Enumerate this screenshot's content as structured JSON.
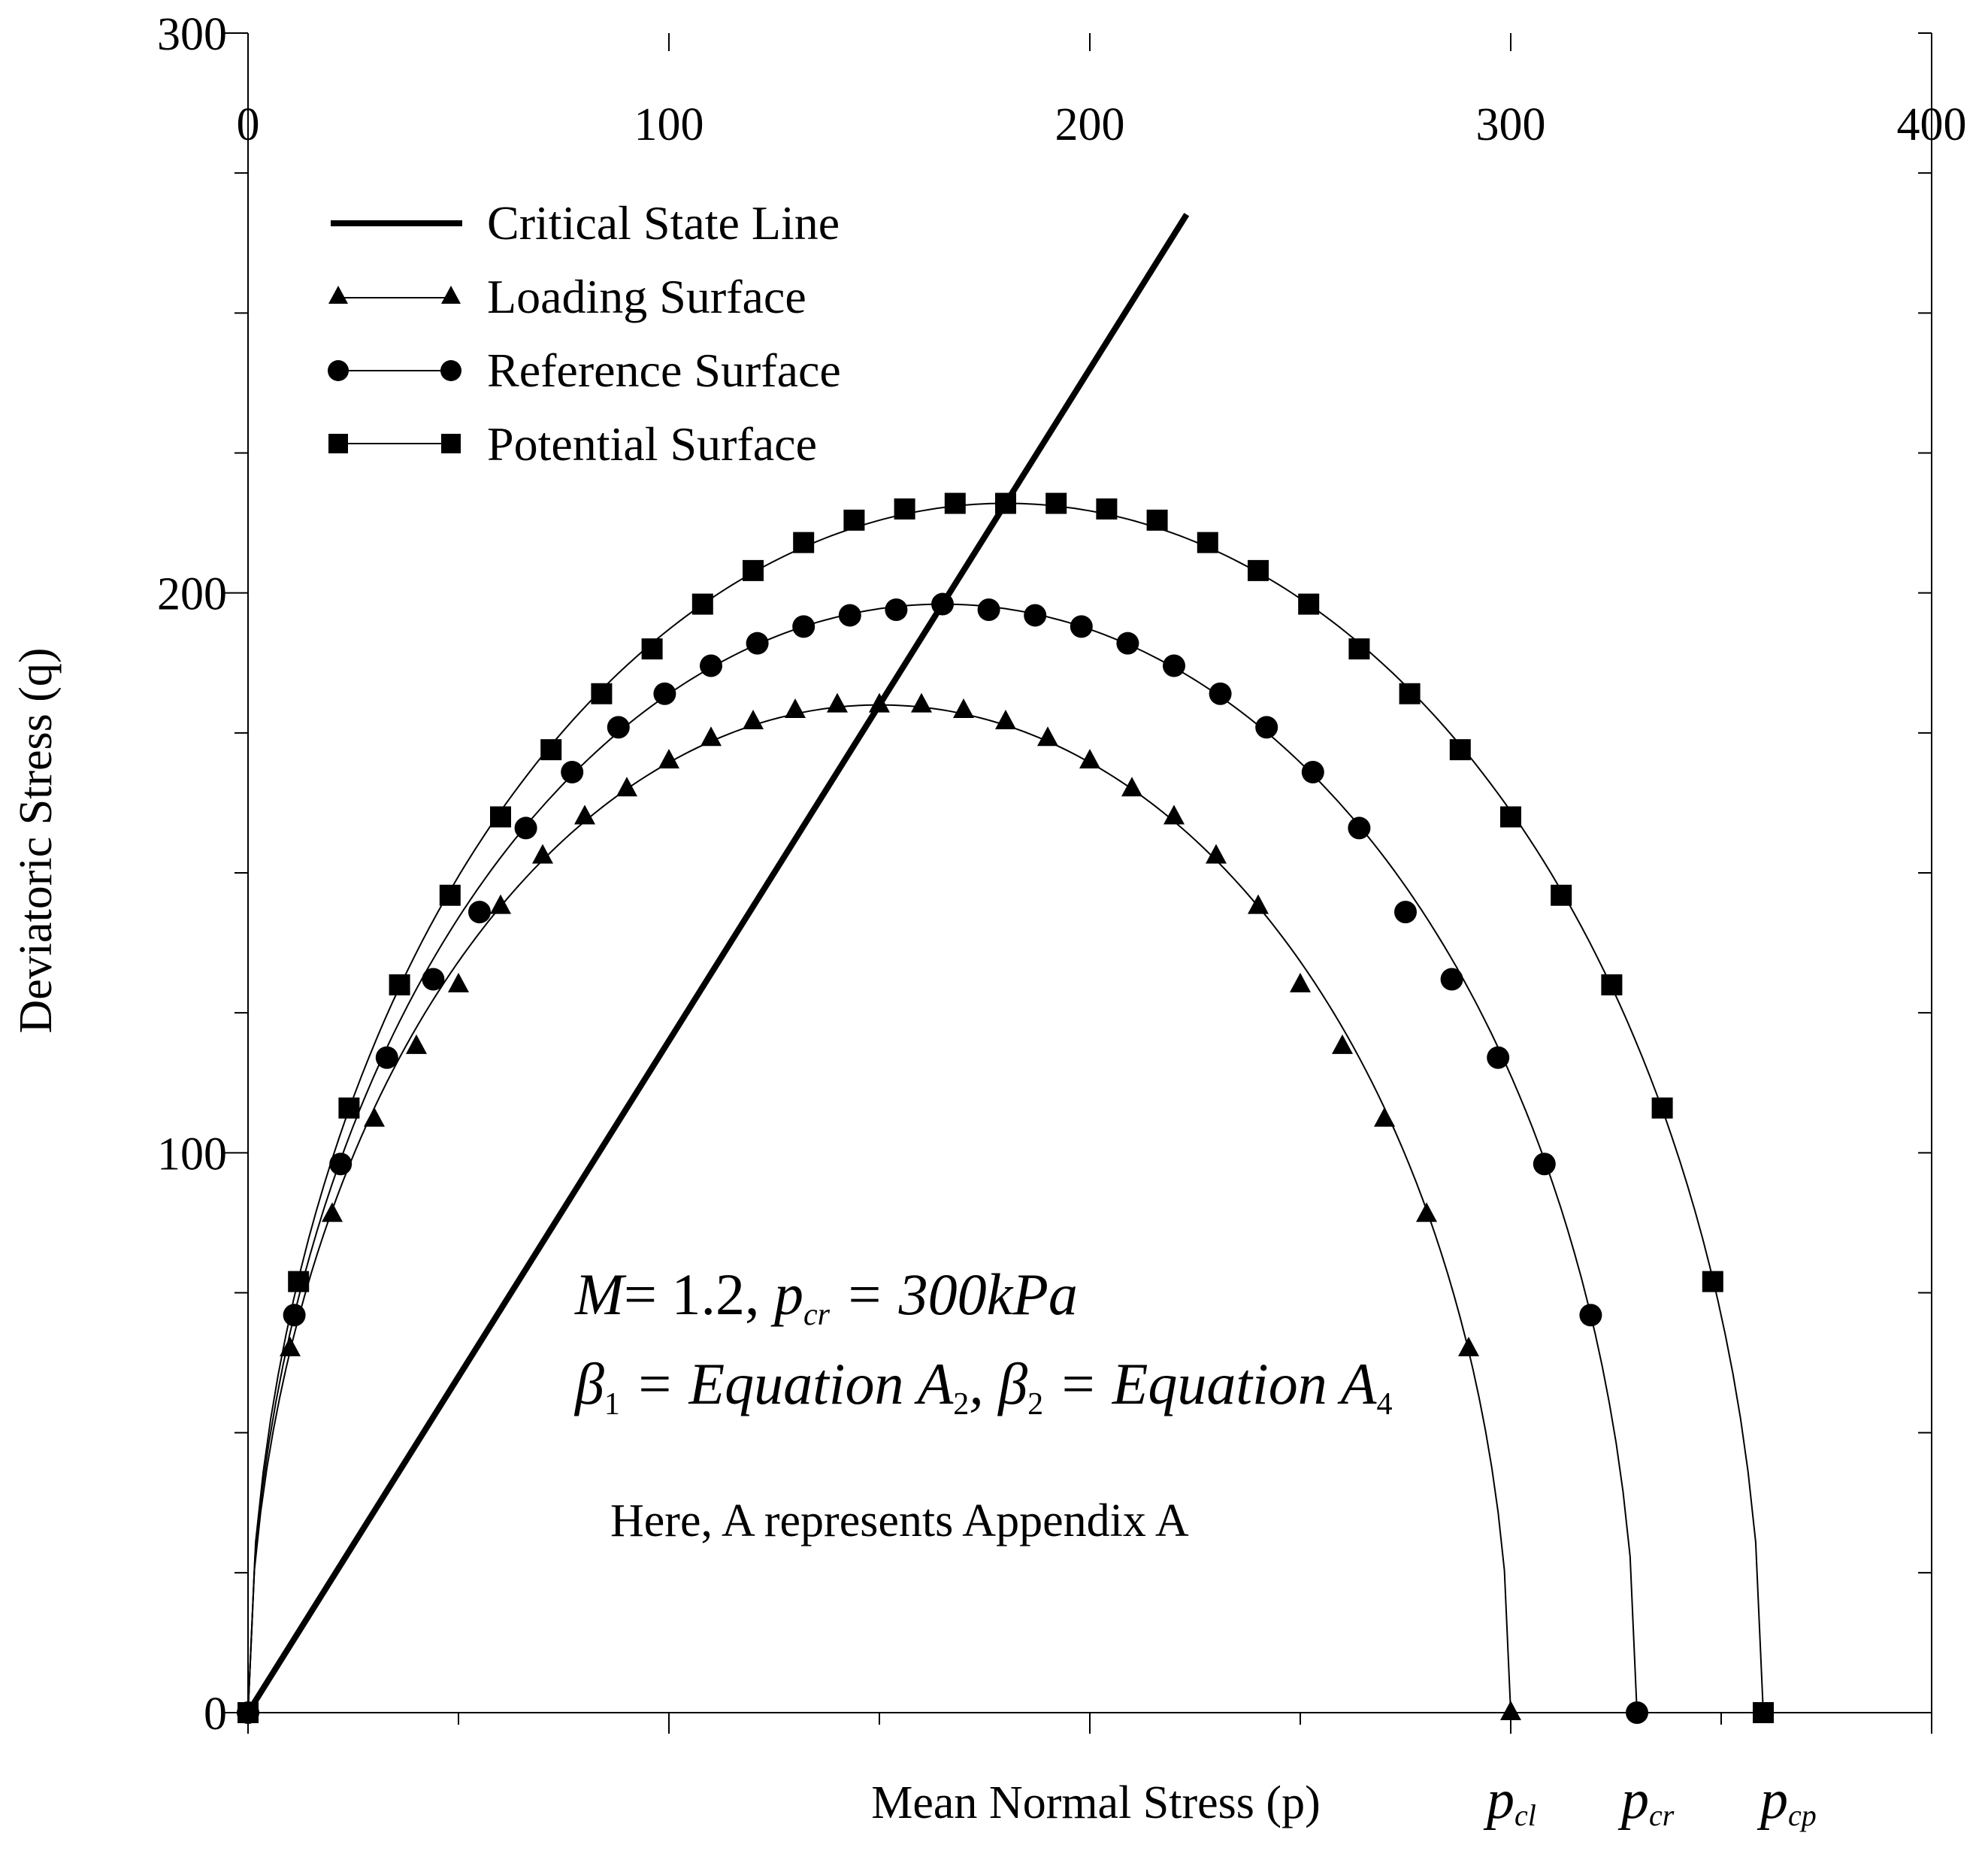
{
  "chart_data": {
    "type": "line",
    "xlabel": "Mean Normal Stress (p)",
    "ylabel": "Deviatoric Stress (q)",
    "xlim": [
      0,
      400
    ],
    "ylim": [
      0,
      300
    ],
    "x_ticks": [
      "0",
      "100",
      "200",
      "300",
      "400"
    ],
    "y_ticks": [
      "0",
      "100",
      "200",
      "300"
    ],
    "grid": false,
    "legend_position": "top-left",
    "legend": [
      "Critical State Line",
      "Loading Surface",
      "Reference Surface",
      "Potential Surface"
    ],
    "critical_state_line": {
      "slope": 1.2,
      "p_end": 223
    },
    "series": [
      {
        "name": "Loading Surface",
        "marker": "triangle",
        "p_c": 300,
        "q_max": 180,
        "p": [
          0,
          10,
          20,
          30,
          40,
          50,
          60,
          70,
          80,
          90,
          100,
          110,
          120,
          130,
          140,
          150,
          160,
          170,
          180,
          190,
          200,
          210,
          220,
          230,
          240,
          250,
          260,
          270,
          280,
          290,
          300
        ],
        "q": [
          0,
          65,
          89,
          106,
          119,
          130,
          144,
          153,
          160,
          165,
          170,
          174,
          177,
          179,
          180,
          180,
          180,
          179,
          177,
          174,
          170,
          165,
          160,
          153,
          144,
          130,
          119,
          106,
          89,
          65,
          0
        ]
      },
      {
        "name": "Reference Surface",
        "marker": "circle",
        "p_c": 330,
        "q_max": 198,
        "p": [
          0,
          11,
          22,
          33,
          44,
          55,
          66,
          77,
          88,
          99,
          110,
          121,
          132,
          143,
          154,
          165,
          176,
          187,
          198,
          209,
          220,
          231,
          242,
          253,
          264,
          275,
          286,
          297,
          308,
          319,
          330
        ],
        "q": [
          0,
          71,
          98,
          117,
          131,
          143,
          158,
          168,
          176,
          182,
          187,
          191,
          194,
          196,
          197,
          198,
          197,
          196,
          194,
          191,
          187,
          182,
          176,
          168,
          158,
          143,
          131,
          117,
          98,
          71,
          0
        ]
      },
      {
        "name": "Potential Surface",
        "marker": "square",
        "p_c": 360,
        "q_max": 216,
        "p": [
          0,
          12,
          24,
          36,
          48,
          60,
          72,
          84,
          96,
          108,
          120,
          132,
          144,
          156,
          168,
          180,
          192,
          204,
          216,
          228,
          240,
          252,
          264,
          276,
          288,
          300,
          312,
          324,
          336,
          348,
          360
        ],
        "q": [
          0,
          77,
          108,
          130,
          146,
          160,
          172,
          182,
          190,
          198,
          204,
          209,
          213,
          215,
          216,
          216,
          216,
          215,
          213,
          209,
          204,
          198,
          190,
          182,
          172,
          160,
          146,
          130,
          108,
          77,
          0
        ]
      }
    ],
    "annotations": {
      "line1_M": "M",
      "line1_eq": "= 1.2, ",
      "line1_p": "p",
      "line1_sub": "cr",
      "line1_val": " = 300kPa",
      "line2_beta": "β",
      "line2_s1": "1",
      "line2_eqA": " = Equation A",
      "line2_a2": "2",
      "line2_comma": ", ",
      "line2_beta2": "β",
      "line2_s2": "2",
      "line2_eqB": " = Equation A",
      "line2_a4": "4",
      "note": "Here, A represents Appendix A"
    },
    "p_markers": [
      {
        "base": "p",
        "sub": "cl"
      },
      {
        "base": "p",
        "sub": "cr"
      },
      {
        "base": "p",
        "sub": "cp"
      }
    ]
  }
}
